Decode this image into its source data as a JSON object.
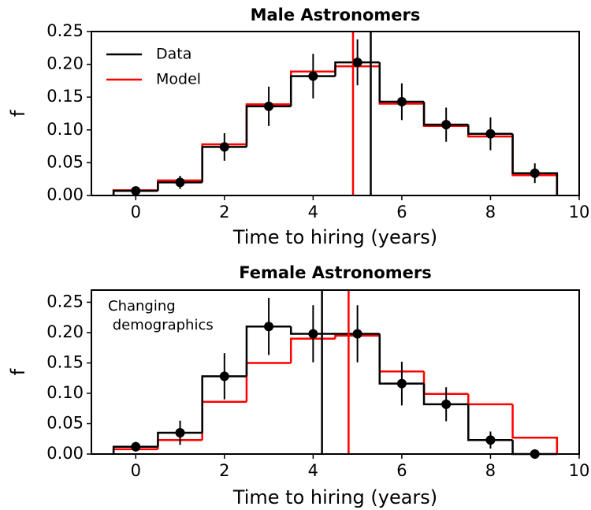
{
  "chart_data": [
    {
      "type": "histogram",
      "title": "Male Astronomers",
      "xlabel": "Time to hiring (years)",
      "ylabel": "f",
      "bins": [
        -0.5,
        0.5,
        1.5,
        2.5,
        3.5,
        4.5,
        5.5,
        6.5,
        7.5,
        8.5,
        9.5
      ],
      "series": [
        {
          "name": "Data",
          "color": "#000000",
          "values": [
            0.007,
            0.02,
            0.074,
            0.136,
            0.182,
            0.203,
            0.143,
            0.108,
            0.094,
            0.034
          ],
          "errors": [
            0.003,
            0.01,
            0.021,
            0.03,
            0.034,
            0.035,
            0.028,
            0.026,
            0.025,
            0.015
          ]
        },
        {
          "name": "Model",
          "color": "#ff0000",
          "values": [
            0.008,
            0.023,
            0.078,
            0.139,
            0.189,
            0.197,
            0.14,
            0.106,
            0.09,
            0.031
          ]
        }
      ],
      "vlines": [
        {
          "color": "#ff0000",
          "x": 4.9
        },
        {
          "color": "#000000",
          "x": 5.3
        }
      ],
      "xlim": [
        -1,
        10
      ],
      "xticks": [
        0,
        2,
        4,
        6,
        8,
        10
      ],
      "ylim": [
        0,
        0.25
      ],
      "yticks": [
        {
          "value": 0,
          "label": "0.00"
        },
        {
          "value": 0.05,
          "label": "0.05"
        },
        {
          "value": 0.1,
          "label": "0.10"
        },
        {
          "value": 0.15,
          "label": "0.15"
        },
        {
          "value": 0.2,
          "label": "0.20"
        },
        {
          "value": 0.25,
          "label": "0.25"
        }
      ],
      "legend": "upper left"
    },
    {
      "type": "histogram",
      "title": "Female Astronomers",
      "xlabel": "Time to hiring (years)",
      "ylabel": "f",
      "annotation": [
        "Changing",
        " demographics"
      ],
      "bins": [
        -0.5,
        0.5,
        1.5,
        2.5,
        3.5,
        4.5,
        5.5,
        6.5,
        7.5,
        8.5,
        9.5
      ],
      "series": [
        {
          "color": "#000000",
          "values": [
            0.012,
            0.035,
            0.128,
            0.21,
            0.198,
            0.198,
            0.116,
            0.082,
            0.023,
            0
          ],
          "errors": [
            0.008,
            0.02,
            0.038,
            0.047,
            0.047,
            0.047,
            0.036,
            0.028,
            0.014,
            0
          ]
        },
        {
          "color": "#ff0000",
          "values": [
            0.008,
            0.023,
            0.086,
            0.15,
            0.19,
            0.195,
            0.136,
            0.099,
            0.082,
            0.027
          ]
        }
      ],
      "vlines": [
        {
          "color": "#000000",
          "x": 4.2
        },
        {
          "color": "#ff0000",
          "x": 4.8
        }
      ],
      "xlim": [
        -1,
        10
      ],
      "xticks": [
        0,
        2,
        4,
        6,
        8,
        10
      ],
      "ylim": [
        0,
        0.27
      ],
      "yticks": [
        {
          "value": 0,
          "label": "0.00"
        },
        {
          "value": 0.05,
          "label": "0.05"
        },
        {
          "value": 0.1,
          "label": "0.10"
        },
        {
          "value": 0.15,
          "label": "0.15"
        },
        {
          "value": 0.2,
          "label": "0.20"
        },
        {
          "value": 0.25,
          "label": "0.25"
        }
      ]
    }
  ]
}
